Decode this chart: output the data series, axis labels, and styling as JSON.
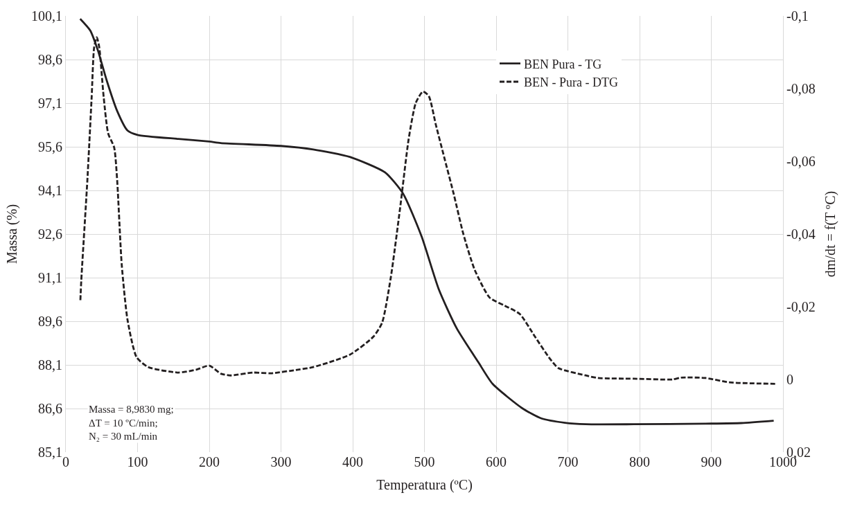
{
  "chart_data": {
    "type": "line",
    "xlabel": "Temperatura (ºC)",
    "ylabel": "Massa (%)",
    "y2label": "dm/dt = f(T ºC)",
    "xlim": [
      0,
      1000
    ],
    "xticks": [
      0,
      100,
      200,
      300,
      400,
      500,
      600,
      700,
      800,
      900,
      1000
    ],
    "ylim": [
      85.1,
      100.1
    ],
    "yticks": [
      {
        "value": 85.1,
        "label": "85,1"
      },
      {
        "value": 86.6,
        "label": "86,6"
      },
      {
        "value": 88.1,
        "label": "88,1"
      },
      {
        "value": 89.6,
        "label": "89,6"
      },
      {
        "value": 91.1,
        "label": "91,1"
      },
      {
        "value": 92.6,
        "label": "92,6"
      },
      {
        "value": 94.1,
        "label": "94,1"
      },
      {
        "value": 95.6,
        "label": "95,6"
      },
      {
        "value": 97.1,
        "label": "97,1"
      },
      {
        "value": 98.6,
        "label": "98,6"
      },
      {
        "value": 100.1,
        "label": "100,1"
      }
    ],
    "y2lim": [
      0.02,
      -0.1
    ],
    "y2ticks": [
      {
        "value": 0.02,
        "label": "0,02"
      },
      0,
      {
        "value": -0.02,
        "label": "-0,02"
      },
      {
        "value": -0.04,
        "label": "-0,04"
      },
      {
        "value": -0.06,
        "label": "-0,06"
      },
      {
        "value": -0.08,
        "label": "-0,08"
      },
      {
        "value": -0.1,
        "label": "-0,1"
      }
    ],
    "grid": true,
    "legend": "top right",
    "marker": "none",
    "annotations": [
      "Massa = 8,9830 mg;\nΔT = 10 ºC/min;\nN₂ = 30 mL/min"
    ],
    "series": [
      {
        "name": "BEN Pura - TG",
        "color": "#231f20",
        "line_style": "solid",
        "x": [
          20,
          34,
          44.5,
          57,
          71.6,
          86,
          100,
          157,
          200,
          216,
          300,
          345,
          396,
          445,
          470,
          496,
          520,
          545,
          575,
          595,
          637,
          663,
          696,
          725,
          792,
          892,
          942,
          987
        ],
        "values": [
          100.0,
          99.6,
          98.93,
          97.88,
          96.83,
          96.16,
          96.01,
          95.87,
          95.78,
          95.73,
          95.63,
          95.51,
          95.25,
          94.72,
          94.0,
          92.52,
          90.7,
          89.36,
          88.2,
          87.45,
          86.6,
          86.26,
          86.11,
          86.06,
          86.06,
          86.08,
          86.1,
          86.18
        ]
      },
      {
        "name": "BEN - Pura - DTG",
        "color": "#231f20",
        "line_style": "dashed",
        "axis": "y2",
        "x": [
          20.3,
          21.5,
          30,
          36,
          39.5,
          43.2,
          46.6,
          52.8,
          59,
          67.4,
          71.6,
          77.9,
          86,
          98.7,
          115,
          157,
          182,
          200,
          216,
          230,
          261,
          286,
          324,
          345,
          396,
          429,
          441,
          453,
          466,
          478,
          488,
          498,
          506,
          516,
          528,
          541,
          554,
          570,
          591,
          612,
          633,
          654,
          675,
          687,
          725,
          742,
          792,
          846,
          858,
          892,
          925,
          989
        ],
        "values": [
          -0.0218,
          -0.0271,
          -0.0547,
          -0.0776,
          -0.0914,
          -0.0941,
          -0.0914,
          -0.0776,
          -0.0677,
          -0.0638,
          -0.0547,
          -0.0317,
          -0.0164,
          -0.0061,
          -0.0034,
          -0.0019,
          -0.0027,
          -0.0038,
          -0.0016,
          -0.0011,
          -0.0019,
          -0.0017,
          -0.0027,
          -0.0034,
          -0.0068,
          -0.0118,
          -0.0156,
          -0.0279,
          -0.047,
          -0.0661,
          -0.0761,
          -0.0792,
          -0.078,
          -0.07,
          -0.0608,
          -0.0509,
          -0.0402,
          -0.0302,
          -0.0225,
          -0.0203,
          -0.018,
          -0.0118,
          -0.0057,
          -0.0031,
          -0.0011,
          -0.0004,
          -0.0002,
          0.0,
          -0.0005,
          -0.0004,
          0.0008,
          0.0012
        ]
      }
    ]
  }
}
